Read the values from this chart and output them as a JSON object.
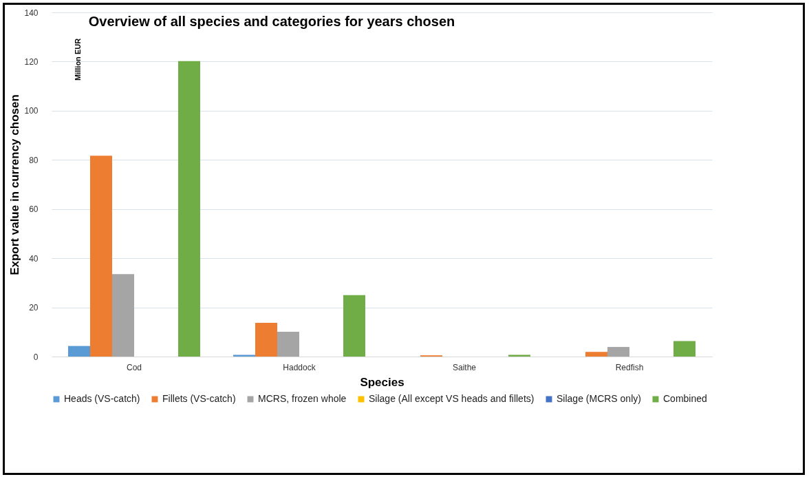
{
  "chart_data": {
    "type": "bar",
    "title": "Overview of all species and categories for years chosen",
    "xlabel": "Species",
    "ylabel": "Export value in currency chosen",
    "annotations": [
      "Million EUR"
    ],
    "categories": [
      "Cod",
      "Haddock",
      "Saithe",
      "Redfish"
    ],
    "series": [
      {
        "name": "Heads (VS-catch)",
        "color": "#5b9bd5",
        "values": [
          4.3,
          0.7,
          0,
          0
        ]
      },
      {
        "name": "Fillets (VS-catch)",
        "color": "#ed7d31",
        "values": [
          81.7,
          13.7,
          0.5,
          1.9
        ]
      },
      {
        "name": "MCRS, frozen whole",
        "color": "#a5a5a5",
        "values": [
          33.5,
          10.1,
          0,
          3.9
        ]
      },
      {
        "name": "Silage (All except VS heads and fillets)",
        "color": "#ffc000",
        "values": [
          0,
          0,
          0,
          0
        ]
      },
      {
        "name": "Silage (MCRS only)",
        "color": "#4472c4",
        "values": [
          0,
          0,
          0,
          0
        ]
      },
      {
        "name": "Combined",
        "color": "#70ad47",
        "values": [
          120.2,
          25,
          0.7,
          6.3
        ]
      }
    ],
    "ylim": [
      0,
      140
    ],
    "yticks": [
      0,
      20,
      40,
      60,
      80,
      100,
      120,
      140
    ],
    "grid": "y",
    "legend": "bottom"
  }
}
